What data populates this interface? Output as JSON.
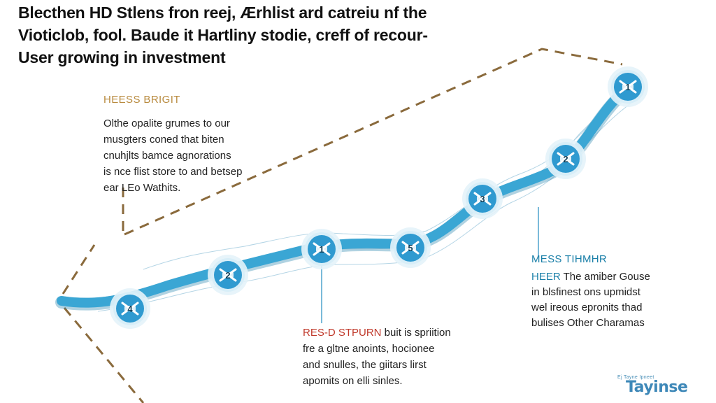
{
  "headline": {
    "lines": [
      "Blecthen HD Stlens fron reej, Ærhlist ard catreiu nf the",
      "Vioticlob, fool. Baude it Hartliny stodie, creff of recour-",
      "User growing in investment"
    ]
  },
  "left_note": {
    "heading": "HEESS BRIGIT",
    "lines": [
      "Olthe opalite grumes to our",
      "musgters coned that biten",
      "cnuhjlts bamce agnorations",
      "is nce flist store to and betsep",
      "ear LEo Wathits."
    ]
  },
  "right_note": {
    "heading": "MESS TIHMHR",
    "lead": "HEER",
    "first_line_rest": " The amiber Gouse",
    "lines": [
      "in blsfinest ons upmidst",
      "wel ireous epronits thad",
      "bulises Other Charamas"
    ]
  },
  "bottom_note": {
    "lead": "RES-D STPURN",
    "first_line_rest": " buit is spriition",
    "lines": [
      "fre a gltne anoints, hocionee",
      "and snulles, the giitars lirst",
      "apomits on elli sinles."
    ]
  },
  "milestones": [
    {
      "label": "4"
    },
    {
      "label": "2"
    },
    {
      "label": "1"
    },
    {
      "label": "5"
    },
    {
      "label": "3"
    },
    {
      "label": "2"
    },
    {
      "label": "1"
    }
  ],
  "brand": {
    "tagline": "Ej Tayne Ipneet",
    "wordmark": "Tayinse"
  },
  "colors": {
    "path": "#3aa6d4",
    "path_dark": "#1d7fa8",
    "node_fill": "#2f9ad0",
    "node_ring": "#d8eef8",
    "dashed_line": "#8a6a3c",
    "connector": "#4ea3cc",
    "heading_gold": "#b88a3e",
    "heading_blue": "#1a7fa8",
    "accent_red": "#c0392b"
  }
}
